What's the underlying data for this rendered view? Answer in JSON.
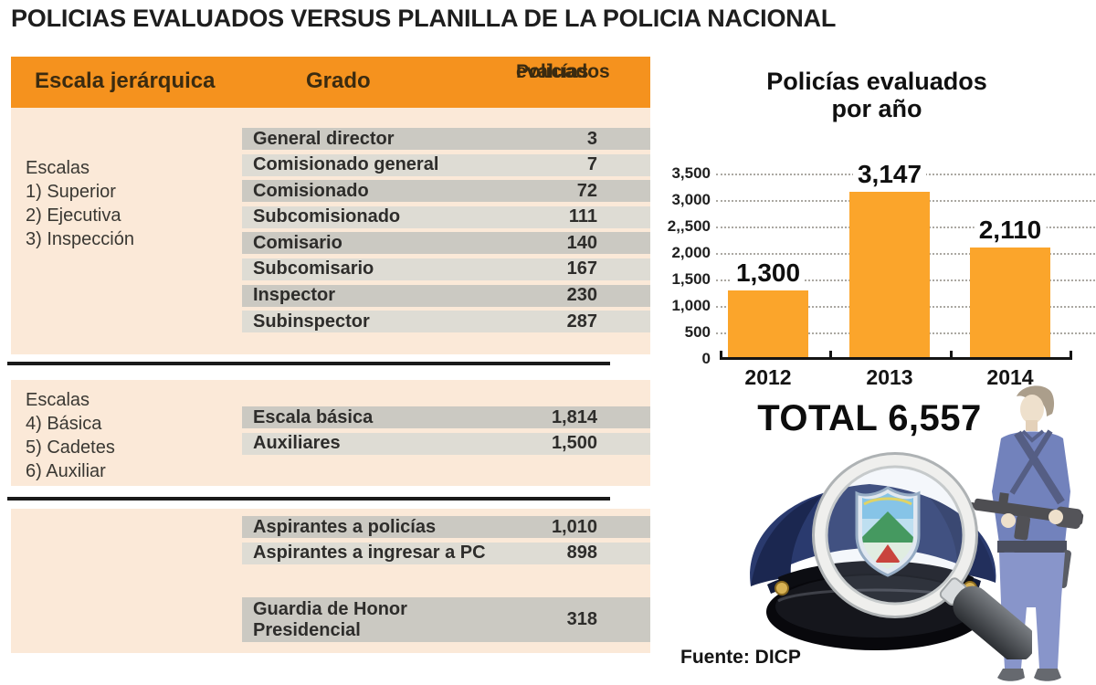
{
  "page_title": "POLICIAS EVALUADOS VERSUS PLANILLA DE LA POLICIA NACIONAL",
  "table": {
    "header": {
      "col_escala": "Escala jerárquica",
      "col_grado": "Grado",
      "col_policias_line1": "Policías",
      "col_policias_line2": "evaluados"
    },
    "sections": [
      {
        "label_lines": [
          "Escalas",
          "1) Superior",
          "2) Ejecutiva",
          "3) Inspección"
        ],
        "rows": [
          {
            "grado": "General director",
            "valor": "3"
          },
          {
            "grado": "Comisionado general",
            "valor": "7"
          },
          {
            "grado": "Comisionado",
            "valor": "72"
          },
          {
            "grado": "Subcomisionado",
            "valor": "111"
          },
          {
            "grado": "Comisario",
            "valor": "140"
          },
          {
            "grado": "Subcomisario",
            "valor": "167"
          },
          {
            "grado": "Inspector",
            "valor": "230"
          },
          {
            "grado": "Subinspector",
            "valor": "287"
          }
        ]
      },
      {
        "label_lines": [
          "Escalas",
          "4) Básica",
          "5) Cadetes",
          "6) Auxiliar"
        ],
        "rows": [
          {
            "grado": "Escala básica",
            "valor": "1,814"
          },
          {
            "grado": "Auxiliares",
            "valor": "1,500"
          }
        ]
      },
      {
        "label_lines": [],
        "rows": [
          {
            "grado": "Aspirantes a policías",
            "valor": "1,010"
          },
          {
            "grado": "Aspirantes a ingresar a PC",
            "valor": "898"
          }
        ],
        "tall_row": {
          "grado_line1": "Guardia de Honor",
          "grado_line2": "Presidencial",
          "valor": "318"
        }
      }
    ]
  },
  "chart_data": {
    "type": "bar",
    "title": "Policías evaluados por año",
    "title_lines": [
      "Policías evaluados",
      "por año"
    ],
    "categories": [
      "2012",
      "2013",
      "2014"
    ],
    "values": [
      1300,
      3147,
      2110
    ],
    "value_labels": [
      "1,300",
      "3,147",
      "2,110"
    ],
    "y_ticks": [
      {
        "value": 3500,
        "label": "3,500"
      },
      {
        "value": 3000,
        "label": "3,000"
      },
      {
        "value": 2500,
        "label": "2,,500"
      },
      {
        "value": 2000,
        "label": "2,000"
      },
      {
        "value": 1500,
        "label": "1,500"
      },
      {
        "value": 1000,
        "label": "1,000"
      },
      {
        "value": 500,
        "label": "500"
      },
      {
        "value": 0,
        "label": "0"
      }
    ],
    "ylim": [
      0,
      3500
    ],
    "xlabel": "",
    "ylabel": "",
    "grid": "horizontal-dotted",
    "legend": "none",
    "bar_color": "#FBA52B"
  },
  "total_text": "TOTAL 6,557",
  "source_text": "Fuente: DICP",
  "illustrations": {
    "police_cap": "police-cap-with-badge",
    "magnifier": "magnifying-glass",
    "officer": "police-officer-with-rifle"
  },
  "colors": {
    "header_orange": "#F5921E",
    "bar_orange": "#FBA52B",
    "panel_cream": "#FBE9D8",
    "row_dark": "#CBC9C2",
    "row_light": "#DEDCD4",
    "divider": "#1A1A1A",
    "text_dark": "#2E2D2B"
  }
}
